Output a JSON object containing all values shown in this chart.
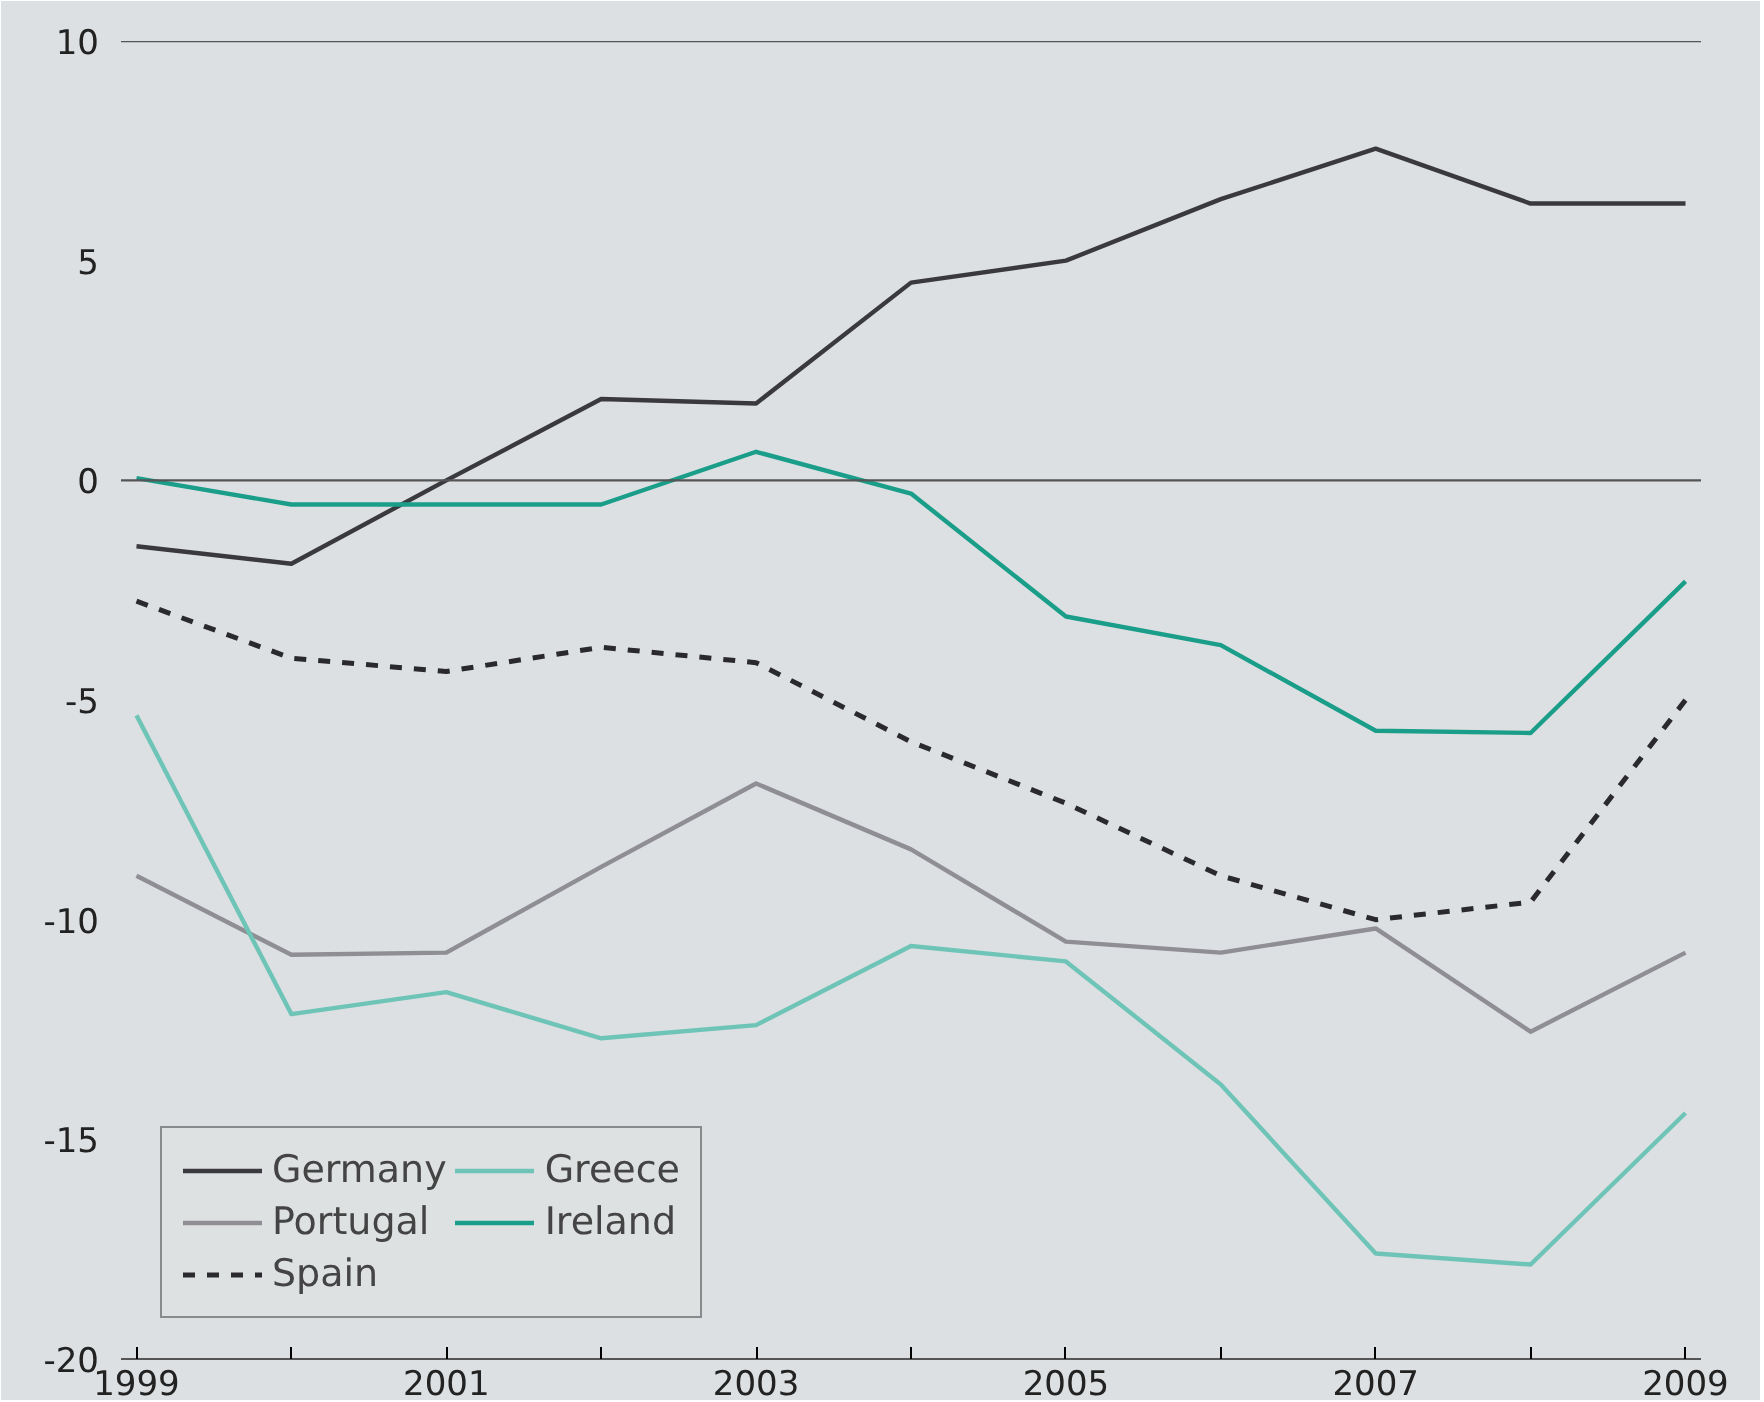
{
  "chart_data": {
    "type": "line",
    "x": [
      1999,
      2000,
      2001,
      2002,
      2003,
      2004,
      2005,
      2006,
      2007,
      2008,
      2009
    ],
    "series": [
      {
        "name": "Germany",
        "color": "#3a3a3e",
        "line_style": "solid",
        "values": [
          -1.5,
          -1.9,
          0.0,
          1.85,
          1.75,
          4.5,
          5.0,
          6.4,
          7.55,
          6.3,
          6.3
        ]
      },
      {
        "name": "Portugal",
        "color": "#8e8e94",
        "line_style": "solid",
        "values": [
          -9.0,
          -10.8,
          -10.75,
          -8.8,
          -6.9,
          -8.4,
          -10.5,
          -10.75,
          -10.2,
          -12.55,
          -10.75
        ]
      },
      {
        "name": "Spain",
        "color": "#2a2a2e",
        "line_style": "dashed",
        "values": [
          -2.75,
          -4.05,
          -4.35,
          -3.8,
          -4.15,
          -5.95,
          -7.35,
          -9.0,
          -10.0,
          -9.6,
          -5.0
        ]
      },
      {
        "name": "Greece",
        "color": "#6fc4b8",
        "line_style": "solid",
        "values": [
          -5.35,
          -12.15,
          -11.65,
          -12.7,
          -12.4,
          -10.6,
          -10.95,
          -13.75,
          -17.6,
          -17.85,
          -14.4
        ]
      },
      {
        "name": "Ireland",
        "color": "#1a9e8a",
        "line_style": "solid",
        "values": [
          0.05,
          -0.55,
          -0.55,
          -0.55,
          0.65,
          -0.3,
          -3.1,
          -3.75,
          -5.7,
          -5.75,
          -2.3
        ]
      }
    ],
    "xlim": [
      1998.9,
      2009.1
    ],
    "ylim": [
      -20,
      10
    ],
    "xticks": [
      1999,
      {
        "value": 2000,
        "label": null
      },
      2001,
      {
        "value": 2002,
        "label": null
      },
      2003,
      {
        "value": 2004,
        "label": null
      },
      2005,
      {
        "value": 2006,
        "label": null
      },
      2007,
      {
        "value": 2008,
        "label": null
      },
      2009
    ],
    "yticks": [
      -20,
      -15,
      -10,
      -5,
      0,
      5,
      10
    ],
    "ref_lines": [
      {
        "axis": "y",
        "value": 0,
        "color": "#555555"
      }
    ],
    "grid": false,
    "legend": "bottom left",
    "marker": "none"
  }
}
